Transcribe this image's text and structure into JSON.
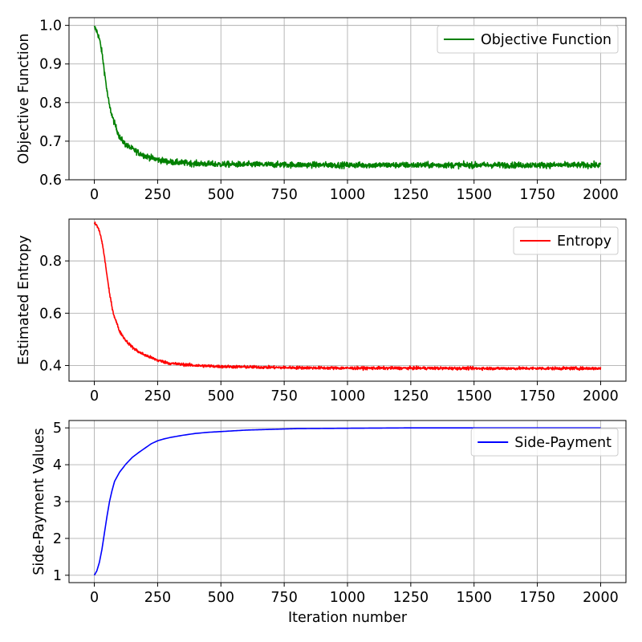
{
  "chart_data": [
    {
      "type": "line",
      "ylabel": "Objective Function",
      "xlabel": "",
      "xlim": [
        -100,
        2100
      ],
      "ylim": [
        0.6,
        1.02
      ],
      "xticks": [
        0,
        250,
        500,
        750,
        1000,
        1250,
        1500,
        1750,
        2000
      ],
      "yticks": [
        0.6,
        0.7,
        0.8,
        0.9,
        1.0
      ],
      "ytick_labels": [
        "0.6",
        "0.7",
        "0.8",
        "0.9",
        "1.0"
      ],
      "grid": true,
      "legend_position": "top-right",
      "series": [
        {
          "name": "Objective Function",
          "color": "#008000",
          "noise": 0.0075,
          "x": [
            0,
            10,
            20,
            30,
            40,
            50,
            60,
            75,
            100,
            125,
            150,
            175,
            200,
            250,
            300,
            400,
            500,
            750,
            1000,
            1250,
            1500,
            1750,
            2000
          ],
          "y": [
            0.995,
            0.985,
            0.965,
            0.93,
            0.88,
            0.83,
            0.79,
            0.755,
            0.71,
            0.69,
            0.68,
            0.67,
            0.662,
            0.652,
            0.646,
            0.642,
            0.64,
            0.639,
            0.638,
            0.638,
            0.638,
            0.638,
            0.638
          ]
        }
      ]
    },
    {
      "type": "line",
      "ylabel": "Estimated Entropy",
      "xlabel": "",
      "xlim": [
        -100,
        2100
      ],
      "ylim": [
        0.34,
        0.96
      ],
      "xticks": [
        0,
        250,
        500,
        750,
        1000,
        1250,
        1500,
        1750,
        2000
      ],
      "yticks": [
        0.4,
        0.6,
        0.8
      ],
      "ytick_labels": [
        "0.4",
        "0.6",
        "0.8"
      ],
      "grid": true,
      "legend_position": "top-right",
      "series": [
        {
          "name": "Entropy",
          "color": "#ff0000",
          "noise": 0.0055,
          "x": [
            0,
            10,
            20,
            30,
            40,
            50,
            60,
            75,
            100,
            125,
            150,
            175,
            200,
            250,
            300,
            400,
            500,
            750,
            1000,
            1250,
            1500,
            1750,
            2000
          ],
          "y": [
            0.945,
            0.935,
            0.915,
            0.875,
            0.815,
            0.745,
            0.675,
            0.6,
            0.53,
            0.495,
            0.47,
            0.452,
            0.44,
            0.42,
            0.408,
            0.4,
            0.396,
            0.392,
            0.39,
            0.39,
            0.389,
            0.389,
            0.389
          ]
        }
      ]
    },
    {
      "type": "line",
      "ylabel": "Side-Payment Values",
      "xlabel": "Iteration number",
      "xlim": [
        -100,
        2100
      ],
      "ylim": [
        0.8,
        5.2
      ],
      "xticks": [
        0,
        250,
        500,
        750,
        1000,
        1250,
        1500,
        1750,
        2000
      ],
      "yticks": [
        1,
        2,
        3,
        4,
        5
      ],
      "ytick_labels": [
        "1",
        "2",
        "3",
        "4",
        "5"
      ],
      "grid": true,
      "legend_position": "top-right",
      "series": [
        {
          "name": "Side-Payment",
          "color": "#0000ff",
          "noise": 0,
          "x": [
            0,
            10,
            20,
            30,
            40,
            50,
            60,
            70,
            80,
            100,
            125,
            150,
            175,
            200,
            225,
            250,
            275,
            300,
            350,
            400,
            450,
            500,
            600,
            700,
            800,
            1000,
            1250,
            1500,
            1750,
            2000
          ],
          "y": [
            1.0,
            1.12,
            1.35,
            1.7,
            2.15,
            2.6,
            3.0,
            3.3,
            3.55,
            3.8,
            4.02,
            4.2,
            4.33,
            4.45,
            4.57,
            4.65,
            4.7,
            4.74,
            4.8,
            4.85,
            4.88,
            4.9,
            4.94,
            4.96,
            4.98,
            4.99,
            5.0,
            5.0,
            5.0,
            5.0
          ]
        }
      ]
    }
  ]
}
